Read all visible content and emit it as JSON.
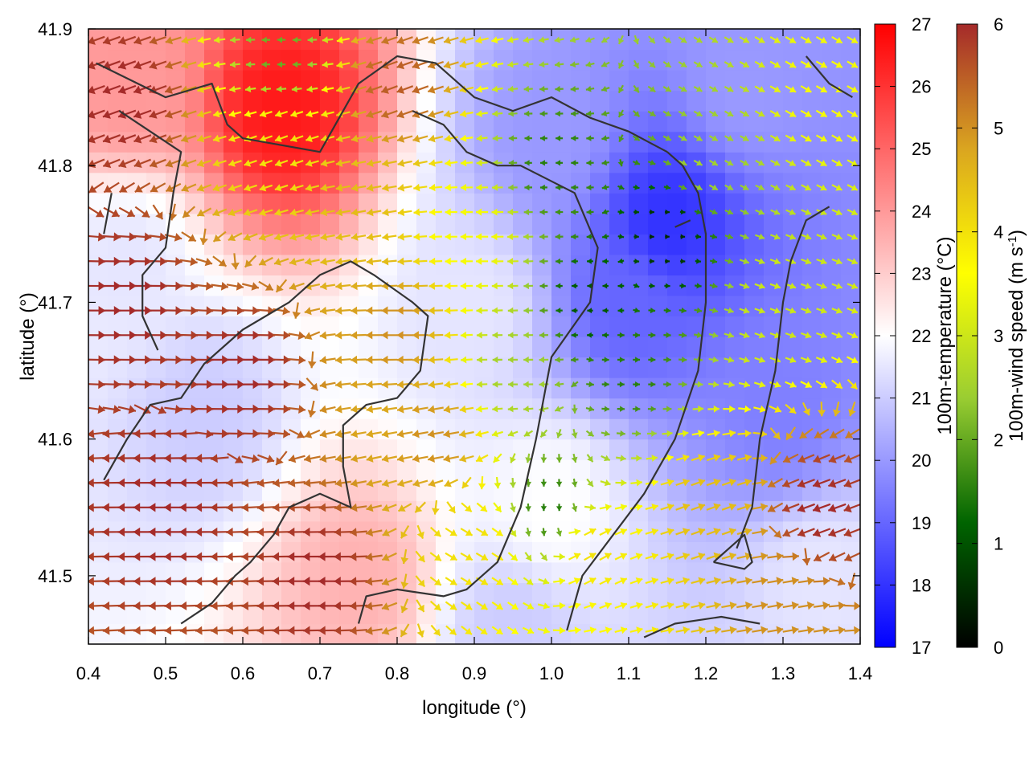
{
  "chart_data": {
    "type": "heatmap",
    "title": "",
    "xlabel": "longitude (°)",
    "ylabel": "latitude (°)",
    "xlim": [
      0.4,
      1.4
    ],
    "ylim": [
      41.45,
      41.9
    ],
    "x_ticks": [
      "0.4",
      "0.5",
      "0.6",
      "0.7",
      "0.8",
      "0.9",
      "1.0",
      "1.1",
      "1.2",
      "1.3",
      "1.4"
    ],
    "y_ticks": [
      "41.5",
      "41.6",
      "41.7",
      "41.8",
      "41.9"
    ],
    "grid": false,
    "field": {
      "name": "100m-temperature",
      "units": "°C",
      "colorbar_label": "100m-temperature (°C)",
      "range": [
        17,
        27
      ],
      "ticks": [
        "17",
        "18",
        "19",
        "20",
        "21",
        "22",
        "23",
        "24",
        "25",
        "26",
        "27"
      ],
      "colormap": [
        "#0000ff",
        "#ffffff",
        "#ff0000"
      ],
      "centers": [
        {
          "lon": 0.45,
          "lat": 41.86,
          "value": 24.0
        },
        {
          "lon": 0.65,
          "lat": 41.84,
          "value": 26.5
        },
        {
          "lon": 0.45,
          "lat": 41.73,
          "value": 21.5
        },
        {
          "lon": 0.55,
          "lat": 41.62,
          "value": 21.0
        },
        {
          "lon": 0.75,
          "lat": 41.5,
          "value": 23.5
        },
        {
          "lon": 0.9,
          "lat": 41.7,
          "value": 21.5
        },
        {
          "lon": 1.0,
          "lat": 41.82,
          "value": 20.0
        },
        {
          "lon": 1.15,
          "lat": 41.76,
          "value": 18.0
        },
        {
          "lon": 1.1,
          "lat": 41.7,
          "value": 19.0
        },
        {
          "lon": 1.3,
          "lat": 41.62,
          "value": 19.5
        },
        {
          "lon": 1.0,
          "lat": 41.55,
          "value": 22.0
        },
        {
          "lon": 1.25,
          "lat": 41.86,
          "value": 20.0
        },
        {
          "lon": 0.95,
          "lat": 41.46,
          "value": 21.0
        },
        {
          "lon": 1.35,
          "lat": 41.5,
          "value": 21.5
        }
      ]
    },
    "vectors": {
      "name": "100m-wind speed",
      "units": "m s-1",
      "colorbar_label": "100m-wind speed (m s-1)",
      "range": [
        0,
        6
      ],
      "ticks": [
        "0",
        "1",
        "2",
        "3",
        "4",
        "5",
        "6"
      ],
      "colormap": [
        "#000000",
        "#006400",
        "#9acd32",
        "#ffff00",
        "#daa520",
        "#a52a2a"
      ],
      "samples": [
        {
          "lon": 0.45,
          "lat": 41.85,
          "speed": 6.0,
          "dir_deg": 200
        },
        {
          "lon": 0.45,
          "lat": 41.7,
          "speed": 6.0,
          "dir_deg": 0
        },
        {
          "lon": 0.5,
          "lat": 41.55,
          "speed": 6.0,
          "dir_deg": 180
        },
        {
          "lon": 0.6,
          "lat": 41.65,
          "speed": 6.0,
          "dir_deg": 0
        },
        {
          "lon": 0.65,
          "lat": 41.88,
          "speed": 2.0,
          "dir_deg": 180
        },
        {
          "lon": 0.65,
          "lat": 41.82,
          "speed": 4.0,
          "dir_deg": 200
        },
        {
          "lon": 0.75,
          "lat": 41.78,
          "speed": 4.5,
          "dir_deg": 190
        },
        {
          "lon": 0.8,
          "lat": 41.68,
          "speed": 5.0,
          "dir_deg": 180
        },
        {
          "lon": 0.85,
          "lat": 41.6,
          "speed": 5.0,
          "dir_deg": 190
        },
        {
          "lon": 0.9,
          "lat": 41.75,
          "speed": 3.5,
          "dir_deg": 180
        },
        {
          "lon": 0.95,
          "lat": 41.65,
          "speed": 2.5,
          "dir_deg": 180
        },
        {
          "lon": 1.0,
          "lat": 41.8,
          "speed": 1.5,
          "dir_deg": 180
        },
        {
          "lon": 1.05,
          "lat": 41.7,
          "speed": 1.0,
          "dir_deg": 180
        },
        {
          "lon": 1.1,
          "lat": 41.65,
          "speed": 1.5,
          "dir_deg": 0
        },
        {
          "lon": 1.15,
          "lat": 41.75,
          "speed": 0.5,
          "dir_deg": 0
        },
        {
          "lon": 1.0,
          "lat": 41.55,
          "speed": 1.5,
          "dir_deg": 270
        },
        {
          "lon": 1.2,
          "lat": 41.8,
          "speed": 2.5,
          "dir_deg": 330
        },
        {
          "lon": 1.3,
          "lat": 41.7,
          "speed": 3.0,
          "dir_deg": 340
        },
        {
          "lon": 1.35,
          "lat": 41.85,
          "speed": 3.5,
          "dir_deg": 330
        },
        {
          "lon": 1.05,
          "lat": 41.52,
          "speed": 4.0,
          "dir_deg": 30
        },
        {
          "lon": 1.2,
          "lat": 41.55,
          "speed": 4.5,
          "dir_deg": 20
        },
        {
          "lon": 1.35,
          "lat": 41.55,
          "speed": 6.0,
          "dir_deg": 200
        },
        {
          "lon": 0.9,
          "lat": 41.52,
          "speed": 4.0,
          "dir_deg": 330
        },
        {
          "lon": 0.8,
          "lat": 41.86,
          "speed": 5.5,
          "dir_deg": 200
        },
        {
          "lon": 1.3,
          "lat": 41.48,
          "speed": 5.0,
          "dir_deg": 10
        },
        {
          "lon": 0.7,
          "lat": 41.5,
          "speed": 6.0,
          "dir_deg": 180
        }
      ]
    },
    "boundaries": [
      {
        "name": "region-border",
        "points": [
          [
            0.41,
            41.875
          ],
          [
            0.5,
            41.85
          ],
          [
            0.56,
            41.86
          ],
          [
            0.58,
            41.83
          ],
          [
            0.6,
            41.82
          ],
          [
            0.7,
            41.81
          ],
          [
            0.75,
            41.86
          ],
          [
            0.8,
            41.88
          ],
          [
            0.85,
            41.875
          ],
          [
            0.9,
            41.85
          ],
          [
            0.95,
            41.84
          ],
          [
            1.0,
            41.85
          ],
          [
            1.05,
            41.835
          ],
          [
            1.1,
            41.825
          ],
          [
            1.15,
            41.81
          ]
        ]
      },
      {
        "name": "coast-west",
        "points": [
          [
            0.43,
            41.78
          ],
          [
            0.42,
            41.75
          ]
        ]
      },
      {
        "name": "county-a",
        "points": [
          [
            0.44,
            41.84
          ],
          [
            0.52,
            41.81
          ],
          [
            0.51,
            41.78
          ],
          [
            0.5,
            41.74
          ],
          [
            0.47,
            41.72
          ],
          [
            0.47,
            41.69
          ],
          [
            0.49,
            41.665
          ]
        ]
      },
      {
        "name": "county-b",
        "points": [
          [
            0.42,
            41.57
          ],
          [
            0.45,
            41.6
          ],
          [
            0.48,
            41.625
          ],
          [
            0.52,
            41.63
          ],
          [
            0.55,
            41.655
          ],
          [
            0.6,
            41.68
          ],
          [
            0.66,
            41.7
          ],
          [
            0.7,
            41.72
          ],
          [
            0.74,
            41.73
          ],
          [
            0.77,
            41.72
          ],
          [
            0.82,
            41.7
          ],
          [
            0.84,
            41.69
          ],
          [
            0.83,
            41.65
          ],
          [
            0.8,
            41.63
          ],
          [
            0.76,
            41.625
          ],
          [
            0.73,
            41.61
          ],
          [
            0.73,
            41.58
          ],
          [
            0.74,
            41.55
          ],
          [
            0.7,
            41.56
          ],
          [
            0.66,
            41.55
          ],
          [
            0.64,
            41.53
          ],
          [
            0.61,
            41.51
          ],
          [
            0.59,
            41.5
          ],
          [
            0.56,
            41.48
          ],
          [
            0.52,
            41.465
          ]
        ]
      },
      {
        "name": "county-c",
        "points": [
          [
            0.75,
            41.465
          ],
          [
            0.76,
            41.485
          ],
          [
            0.8,
            41.49
          ],
          [
            0.86,
            41.485
          ],
          [
            0.89,
            41.49
          ],
          [
            0.93,
            41.51
          ],
          [
            0.96,
            41.55
          ],
          [
            0.98,
            41.6
          ],
          [
            1.0,
            41.66
          ],
          [
            1.05,
            41.7
          ],
          [
            1.06,
            41.74
          ],
          [
            1.03,
            41.78
          ],
          [
            0.96,
            41.8
          ],
          [
            0.93,
            41.8
          ],
          [
            0.89,
            41.81
          ],
          [
            0.86,
            41.83
          ],
          [
            0.82,
            41.84
          ]
        ]
      },
      {
        "name": "county-d",
        "points": [
          [
            1.02,
            41.46
          ],
          [
            1.04,
            41.5
          ],
          [
            1.08,
            41.53
          ],
          [
            1.12,
            41.56
          ],
          [
            1.16,
            41.6
          ],
          [
            1.19,
            41.65
          ],
          [
            1.2,
            41.7
          ],
          [
            1.2,
            41.75
          ],
          [
            1.19,
            41.78
          ],
          [
            1.17,
            41.8
          ],
          [
            1.15,
            41.81
          ]
        ]
      },
      {
        "name": "county-e",
        "points": [
          [
            1.16,
            41.755
          ],
          [
            1.18,
            41.76
          ]
        ]
      },
      {
        "name": "county-f",
        "points": [
          [
            1.36,
            41.77
          ],
          [
            1.33,
            41.76
          ],
          [
            1.31,
            41.73
          ],
          [
            1.3,
            41.7
          ],
          [
            1.29,
            41.65
          ],
          [
            1.27,
            41.6
          ],
          [
            1.26,
            41.55
          ],
          [
            1.24,
            41.52
          ]
        ]
      },
      {
        "name": "enclave",
        "points": [
          [
            1.21,
            41.51
          ],
          [
            1.25,
            41.53
          ],
          [
            1.26,
            41.51
          ],
          [
            1.25,
            41.505
          ],
          [
            1.21,
            41.51
          ]
        ]
      },
      {
        "name": "south-border",
        "points": [
          [
            1.12,
            41.455
          ],
          [
            1.16,
            41.465
          ],
          [
            1.22,
            41.47
          ],
          [
            1.27,
            41.465
          ]
        ]
      },
      {
        "name": "northeast-border",
        "points": [
          [
            1.33,
            41.88
          ],
          [
            1.36,
            41.86
          ],
          [
            1.39,
            41.85
          ]
        ]
      }
    ]
  }
}
